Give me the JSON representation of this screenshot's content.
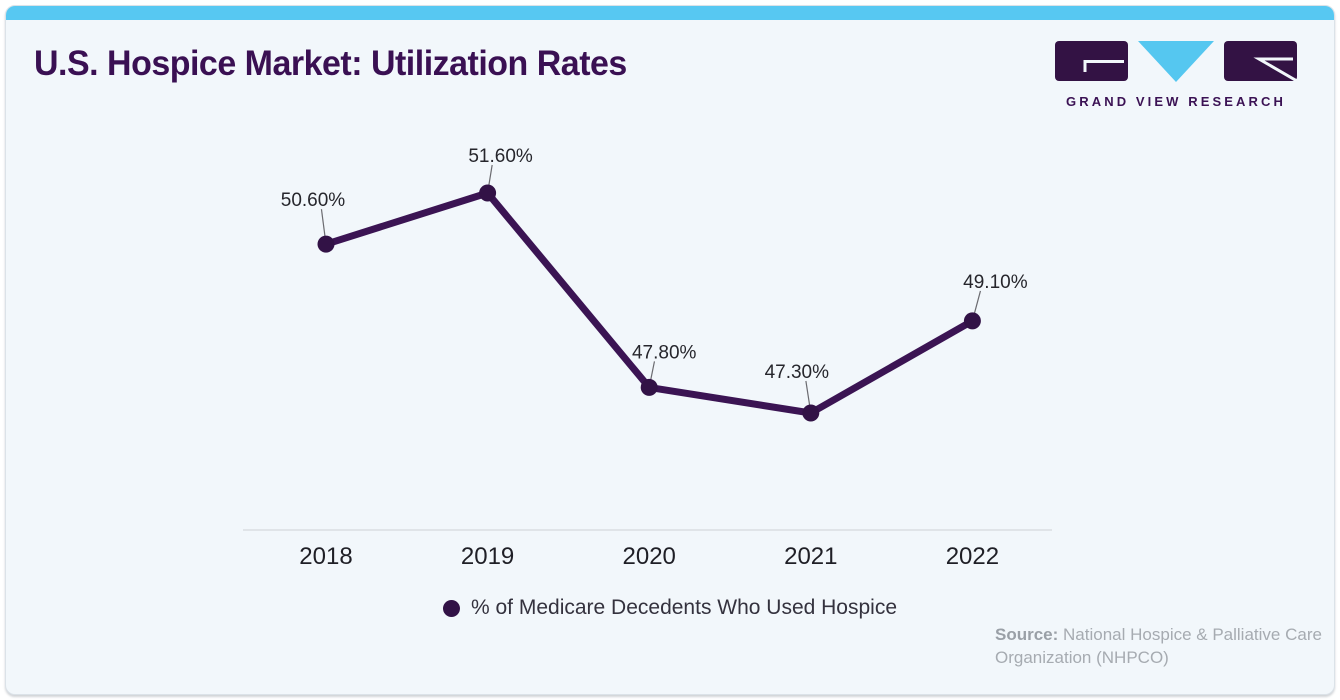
{
  "header": {
    "title": "U.S. Hospice Market: Utilization Rates",
    "logo_text": "GRAND VIEW RESEARCH"
  },
  "chart_data": {
    "type": "line",
    "title": "U.S. Hospice Market: Utilization Rates",
    "categories": [
      "2018",
      "2019",
      "2020",
      "2021",
      "2022"
    ],
    "values": [
      50.6,
      51.6,
      47.8,
      47.3,
      49.1
    ],
    "point_labels": [
      "50.60%",
      "51.60%",
      "47.80%",
      "47.30%",
      "49.10%"
    ],
    "series_name": "% of Medicare Decedents Who Used Hospice",
    "xlabel": "",
    "ylabel": "",
    "ylim": [
      46.5,
      52.5
    ],
    "grid": false,
    "legend_position": "bottom",
    "line_color": "#3b1453",
    "marker_color": "#321246",
    "point_label_color": "#26262c",
    "leader_line_color": "#6b6b70",
    "axis_line_color": "#e0e4e8",
    "tick_label_color": "#1f1f26"
  },
  "legend": {
    "label": "% of Medicare Decedents Who Used Hospice",
    "marker_color": "#321246"
  },
  "source": {
    "label": "Source:",
    "text": "National Hospice & Palliative Care Organization (NHPCO)"
  },
  "colors": {
    "accent_bar": "#57c8f2",
    "card_background": "#f2f7fb",
    "title_color": "#3a1053",
    "logo_purple": "#331244",
    "logo_cyan": "#55c7f0"
  }
}
